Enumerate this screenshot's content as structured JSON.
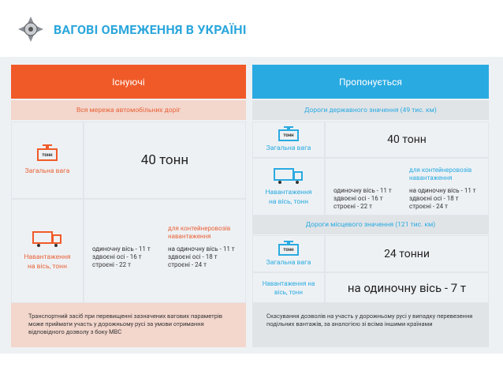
{
  "header": {
    "title": "ВАГОВІ ОБМЕЖЕННЯ В УКРАЇНІ"
  },
  "colors": {
    "orange": "#f05a28",
    "blue": "#29aae1",
    "pink": "#f3d6cc",
    "gray": "#e1e4e7"
  },
  "existing": {
    "title": "Існуючі",
    "section": "Вся мережа автомобільних доріг",
    "total_label": "Загальна вага",
    "ton_icon_text": "тонн",
    "total_value": "40 тонн",
    "axle_label": "Навантаження на вісь, тонн",
    "axle_lines": [
      "одиночну вісь - 11 т",
      "здвоєні осі - 16 т",
      "строєні - 22 т"
    ],
    "container_heading": "для контейнеровозів навантаження",
    "container_lines": [
      "на одиночну вісь - 11 т",
      "здвоєні осі - 18 т",
      "строєні - 24 т"
    ],
    "footer": "Транспортний засіб при перевищенні зазначених вагових параметрів може приймати участь у дорожньому русі за умови отримання відповідного дозволу з боку МВС"
  },
  "proposed": {
    "title": "Пропонується",
    "section_state": "Дороги державного значення (49 тис. км)",
    "total_label": "Загальна вага",
    "ton_icon_text": "тонн",
    "total_value": "40 тонн",
    "axle_label": "Навантаження на вісь, тонн",
    "axle_lines": [
      "одиночну вісь - 11 т",
      "здвоєні осі - 16 т",
      "строєні - 22 т"
    ],
    "container_heading": "для контейнеровозів навантаження",
    "container_lines": [
      "на одиночну вісь - 11 т",
      "здвоєні осі - 18 т",
      "строєні - 24 т"
    ],
    "section_local": "Дороги місцевого значення (121 тис. км)",
    "local_total_label": "Загальна вага",
    "local_total_value": "24 тонни",
    "local_axle_label": "Навантаження на вісь, тонн",
    "local_axle_value": "на одиночну вісь - 7 т",
    "footer": "Скасування дозволів на участь у дорожньому русі у випадку перевезення подільних вантажів, за аналогією зі всіма іншими країнами"
  }
}
